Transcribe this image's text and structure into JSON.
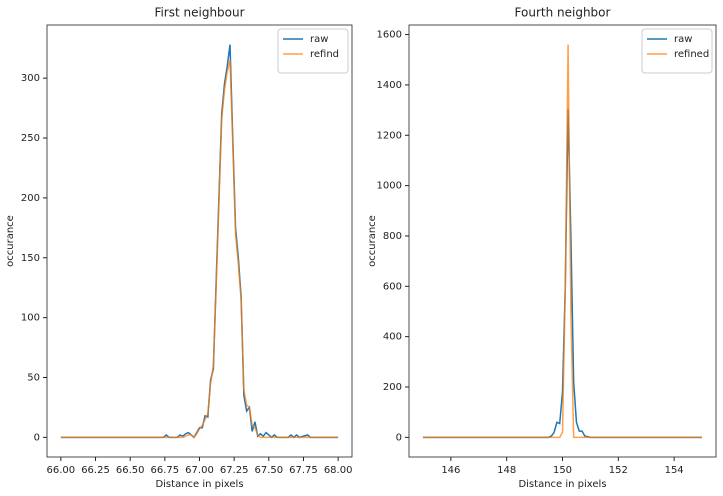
{
  "chart_data": [
    {
      "type": "line",
      "title": "First neighbour",
      "xlabel": "Distance in pixels",
      "ylabel": "occurance",
      "x": [
        66.0,
        66.74,
        66.76,
        66.78,
        66.84,
        66.86,
        66.88,
        66.9,
        66.92,
        66.94,
        66.96,
        66.98,
        67.0,
        67.02,
        67.04,
        67.06,
        67.08,
        67.1,
        67.12,
        67.14,
        67.16,
        67.18,
        67.2,
        67.22,
        67.24,
        67.26,
        67.28,
        67.3,
        67.32,
        67.34,
        67.36,
        67.38,
        67.4,
        67.42,
        67.44,
        67.46,
        67.48,
        67.5,
        67.52,
        67.54,
        67.56,
        67.64,
        67.66,
        67.68,
        67.7,
        67.72,
        67.78,
        67.8,
        68.0
      ],
      "series": [
        {
          "name": "raw",
          "color": "#1f77b4",
          "values": [
            0,
            0,
            2,
            0,
            0,
            2,
            1,
            3,
            4,
            2,
            0,
            4,
            8,
            8,
            18,
            17,
            48,
            57,
            130,
            200,
            270,
            295,
            310,
            328,
            250,
            175,
            150,
            118,
            35,
            22,
            25,
            5,
            13,
            1,
            3,
            1,
            4,
            2,
            0,
            2,
            0,
            0,
            2,
            0,
            2,
            0,
            2,
            0,
            0
          ]
        },
        {
          "name": "refind",
          "color": "#ff7f0e",
          "values": [
            0,
            0,
            0,
            0,
            0,
            0,
            0,
            1,
            2,
            2,
            0,
            3,
            7,
            10,
            15,
            20,
            45,
            60,
            125,
            195,
            265,
            290,
            305,
            315,
            245,
            170,
            145,
            115,
            40,
            27,
            25,
            10,
            8,
            2,
            0,
            0,
            0,
            0,
            0,
            0,
            0,
            0,
            0,
            0,
            0,
            0,
            0,
            0,
            0
          ]
        }
      ],
      "xlim": [
        65.9,
        68.1
      ],
      "ylim": [
        -16.4,
        344.4
      ],
      "xticks": [
        {
          "value": 66.0,
          "label": "66.00"
        },
        {
          "value": 66.25,
          "label": "66.25"
        },
        {
          "value": 66.5,
          "label": "66.50"
        },
        {
          "value": 66.75,
          "label": "66.75"
        },
        {
          "value": 67.0,
          "label": "67.00"
        },
        {
          "value": 67.25,
          "label": "67.25"
        },
        {
          "value": 67.5,
          "label": "67.50"
        },
        {
          "value": 67.75,
          "label": "67.75"
        },
        {
          "value": 68.0,
          "label": "68.00"
        }
      ],
      "yticks": [
        0,
        50,
        100,
        150,
        200,
        250,
        300
      ],
      "legend": "upper right"
    },
    {
      "type": "line",
      "title": "Fourth neighbor",
      "xlabel": "Distance in pixels",
      "ylabel": "occurance",
      "x": [
        145,
        149.5,
        149.6,
        149.7,
        149.8,
        149.9,
        150.0,
        150.1,
        150.2,
        150.3,
        150.4,
        150.5,
        150.6,
        150.7,
        150.8,
        151.0,
        155
      ],
      "series": [
        {
          "name": "raw",
          "color": "#1f77b4",
          "values": [
            0,
            0,
            5,
            20,
            60,
            55,
            180,
            600,
            1305,
            800,
            220,
            60,
            25,
            25,
            5,
            0,
            0
          ]
        },
        {
          "name": "refined",
          "color": "#ff7f0e",
          "values": [
            0,
            0,
            0,
            0,
            0,
            0,
            20,
            600,
            1560,
            500,
            0,
            0,
            0,
            0,
            0,
            0,
            0
          ]
        }
      ],
      "xlim": [
        144.5,
        155.5
      ],
      "ylim": [
        -78,
        1638
      ],
      "xticks": [
        146,
        148,
        150,
        152,
        154
      ],
      "yticks": [
        0,
        200,
        400,
        600,
        800,
        1000,
        1200,
        1400,
        1600
      ],
      "legend": "upper right"
    }
  ]
}
